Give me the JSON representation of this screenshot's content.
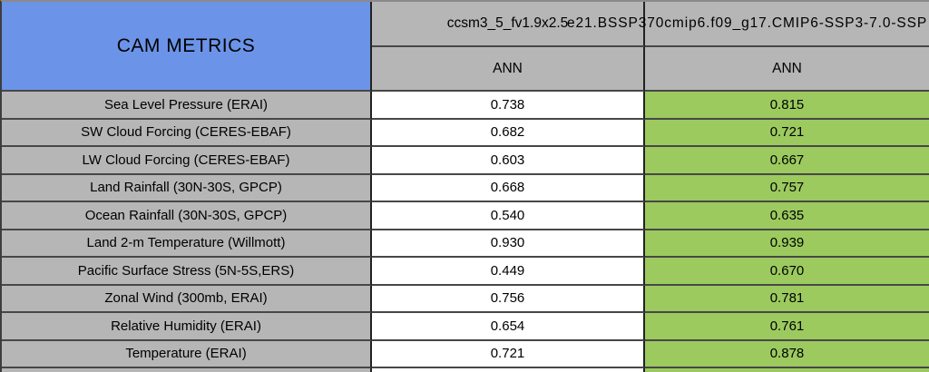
{
  "title": "CAM METRICS",
  "columns": [
    {
      "model": "ccsm3_5_fv1.9x2.5",
      "season": "ANN"
    },
    {
      "model": "e21.BSSP370cmip6.f09_g17.CMIP6-SSP3-7.0-SSP",
      "season": "ANN"
    }
  ],
  "rows": [
    {
      "label": "Sea Level Pressure (ERAI)",
      "values": [
        "0.738",
        "0.815"
      ]
    },
    {
      "label": "SW Cloud Forcing (CERES-EBAF)",
      "values": [
        "0.682",
        "0.721"
      ]
    },
    {
      "label": "LW Cloud Forcing (CERES-EBAF)",
      "values": [
        "0.603",
        "0.667"
      ]
    },
    {
      "label": "Land Rainfall (30N-30S, GPCP)",
      "values": [
        "0.668",
        "0.757"
      ]
    },
    {
      "label": "Ocean Rainfall (30N-30S, GPCP)",
      "values": [
        "0.540",
        "0.635"
      ]
    },
    {
      "label": "Land 2-m Temperature (Willmott)",
      "values": [
        "0.930",
        "0.939"
      ]
    },
    {
      "label": "Pacific Surface Stress (5N-5S,ERS)",
      "values": [
        "0.449",
        "0.670"
      ]
    },
    {
      "label": "Zonal Wind (300mb, ERAI)",
      "values": [
        "0.756",
        "0.781"
      ]
    },
    {
      "label": "Relative Humidity (ERAI)",
      "values": [
        "0.654",
        "0.761"
      ]
    },
    {
      "label": "Temperature (ERAI)",
      "values": [
        "0.721",
        "0.878"
      ]
    }
  ],
  "colors": {
    "title_bg": "#6b94e8",
    "header_bg": "#b6b6b6",
    "label_bg": "#b6b6b6",
    "values_col1_bg": "#ffffff",
    "values_col2_bg": "#9cca5f",
    "border": "#3d3d3d",
    "text": "#000000"
  },
  "chart_data": {
    "type": "table",
    "title": "CAM METRICS",
    "column_headers": [
      "ccsm3_5_fv1.9x2.5",
      "e21.BSSP370cmip6.f09_g17.CMIP6-SSP3-7.0-SSP"
    ],
    "subheaders": [
      "ANN",
      "ANN"
    ],
    "row_labels": [
      "Sea Level Pressure (ERAI)",
      "SW Cloud Forcing (CERES-EBAF)",
      "LW Cloud Forcing (CERES-EBAF)",
      "Land Rainfall (30N-30S, GPCP)",
      "Ocean Rainfall (30N-30S, GPCP)",
      "Land 2-m Temperature (Willmott)",
      "Pacific Surface Stress (5N-5S,ERS)",
      "Zonal Wind (300mb, ERAI)",
      "Relative Humidity (ERAI)",
      "Temperature (ERAI)"
    ],
    "series": [
      {
        "name": "ccsm3_5_fv1.9x2.5",
        "values": [
          0.738,
          0.682,
          0.603,
          0.668,
          0.54,
          0.93,
          0.449,
          0.756,
          0.654,
          0.721
        ]
      },
      {
        "name": "e21.BSSP370cmip6.f09_g17.CMIP6-SSP3-7.0-SSP",
        "values": [
          0.815,
          0.721,
          0.667,
          0.757,
          0.635,
          0.939,
          0.67,
          0.781,
          0.761,
          0.878
        ]
      }
    ],
    "layout_hints": "second series column shaded green; label and header cells gray; title cell blue; second header string clipped at right image edge"
  }
}
